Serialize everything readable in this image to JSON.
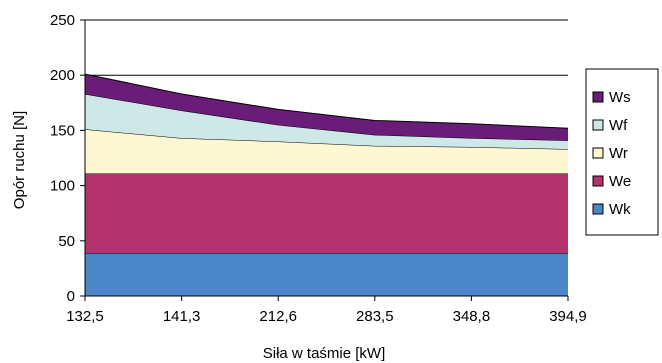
{
  "chart_data": {
    "type": "area",
    "stacked": true,
    "categories": [
      "132,5",
      "141,3",
      "212,6",
      "283,5",
      "348,8",
      "394,9"
    ],
    "series": [
      {
        "name": "Wk",
        "values": [
          39,
          39,
          39,
          39,
          39,
          39
        ],
        "color": "#4a86c8"
      },
      {
        "name": "We",
        "values": [
          72,
          72,
          72,
          72,
          72,
          72
        ],
        "color": "#b5336c"
      },
      {
        "name": "Wr",
        "values": [
          40,
          32,
          29,
          25,
          24,
          22
        ],
        "color": "#fdf8d2"
      },
      {
        "name": "Wf",
        "values": [
          32,
          25,
          15,
          10,
          8,
          8
        ],
        "color": "#cde8e6"
      },
      {
        "name": "Ws",
        "values": [
          18,
          15,
          14,
          13,
          13,
          11
        ],
        "color": "#6a1d78"
      }
    ],
    "y_ticks": [
      "0",
      "50",
      "100",
      "150",
      "200",
      "250"
    ],
    "ylim": [
      0,
      250
    ],
    "xlabel": "Siła w taśmie [kW]",
    "ylabel": "Opór ruchu [N]",
    "grid": "horizontal",
    "legend": {
      "position": "right",
      "order": [
        "Ws",
        "Wf",
        "Wr",
        "We",
        "Wk"
      ]
    }
  }
}
